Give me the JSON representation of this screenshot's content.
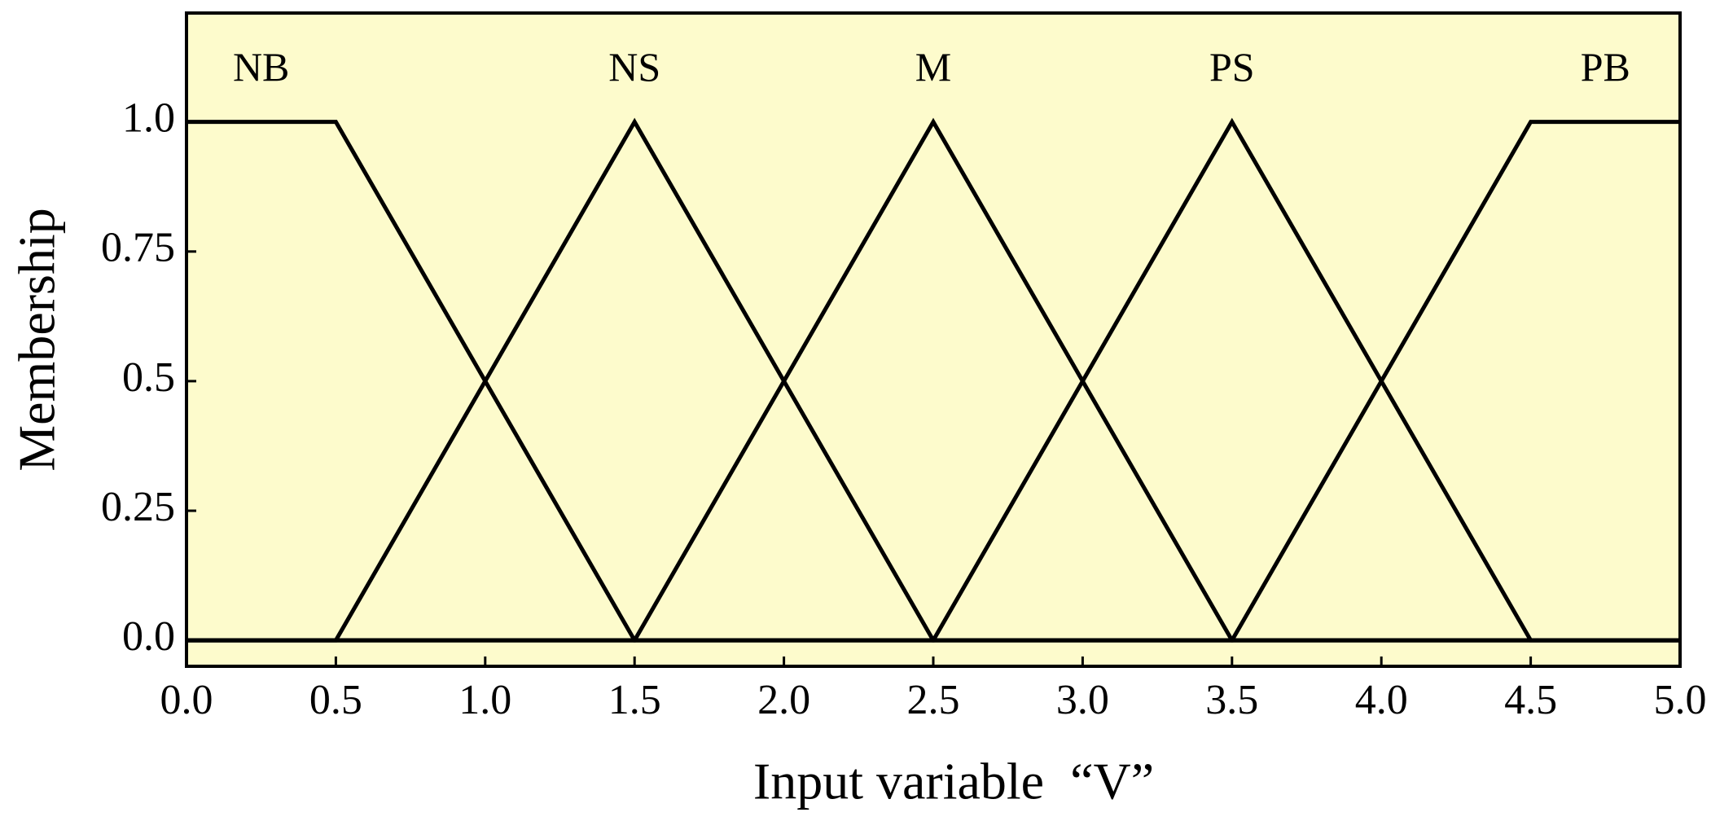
{
  "chart_data": {
    "type": "line",
    "x_label": "Input variable  “V”",
    "y_label": "Membership",
    "xlim": [
      0,
      5
    ],
    "ylim": [
      -0.05,
      1.21
    ],
    "xticks": [
      {
        "value": 0,
        "label": "0.0"
      },
      0.5,
      {
        "value": 1,
        "label": "1.0"
      },
      1.5,
      {
        "value": 2,
        "label": "2.0"
      },
      2.5,
      {
        "value": 3,
        "label": "3.0"
      },
      3.5,
      {
        "value": 4,
        "label": "4.0"
      },
      4.5,
      {
        "value": 5,
        "label": "5.0"
      }
    ],
    "yticks": [
      {
        "value": 0,
        "label": "0.0"
      },
      0.25,
      0.5,
      0.75,
      {
        "value": 1,
        "label": "1.0"
      }
    ],
    "background": "#fdfbcc",
    "series": [
      {
        "name": "NB",
        "color": "#000000",
        "x": [
          0,
          0.5,
          1.5,
          5
        ],
        "values": [
          1,
          1,
          0,
          0
        ]
      },
      {
        "name": "NS",
        "color": "#000000",
        "x": [
          0,
          0.5,
          1.5,
          2.5,
          5
        ],
        "values": [
          0,
          0,
          1,
          0,
          0
        ]
      },
      {
        "name": "M",
        "color": "#000000",
        "x": [
          0,
          1.5,
          2.5,
          3.5,
          5
        ],
        "values": [
          0,
          0,
          1,
          0,
          0
        ]
      },
      {
        "name": "PS",
        "color": "#000000",
        "x": [
          0,
          2.5,
          3.5,
          4.5,
          5
        ],
        "values": [
          0,
          0,
          1,
          0,
          0
        ]
      },
      {
        "name": "PB",
        "color": "#000000",
        "x": [
          0,
          3.5,
          4.5,
          5
        ],
        "values": [
          0,
          0,
          1,
          1
        ]
      }
    ]
  }
}
